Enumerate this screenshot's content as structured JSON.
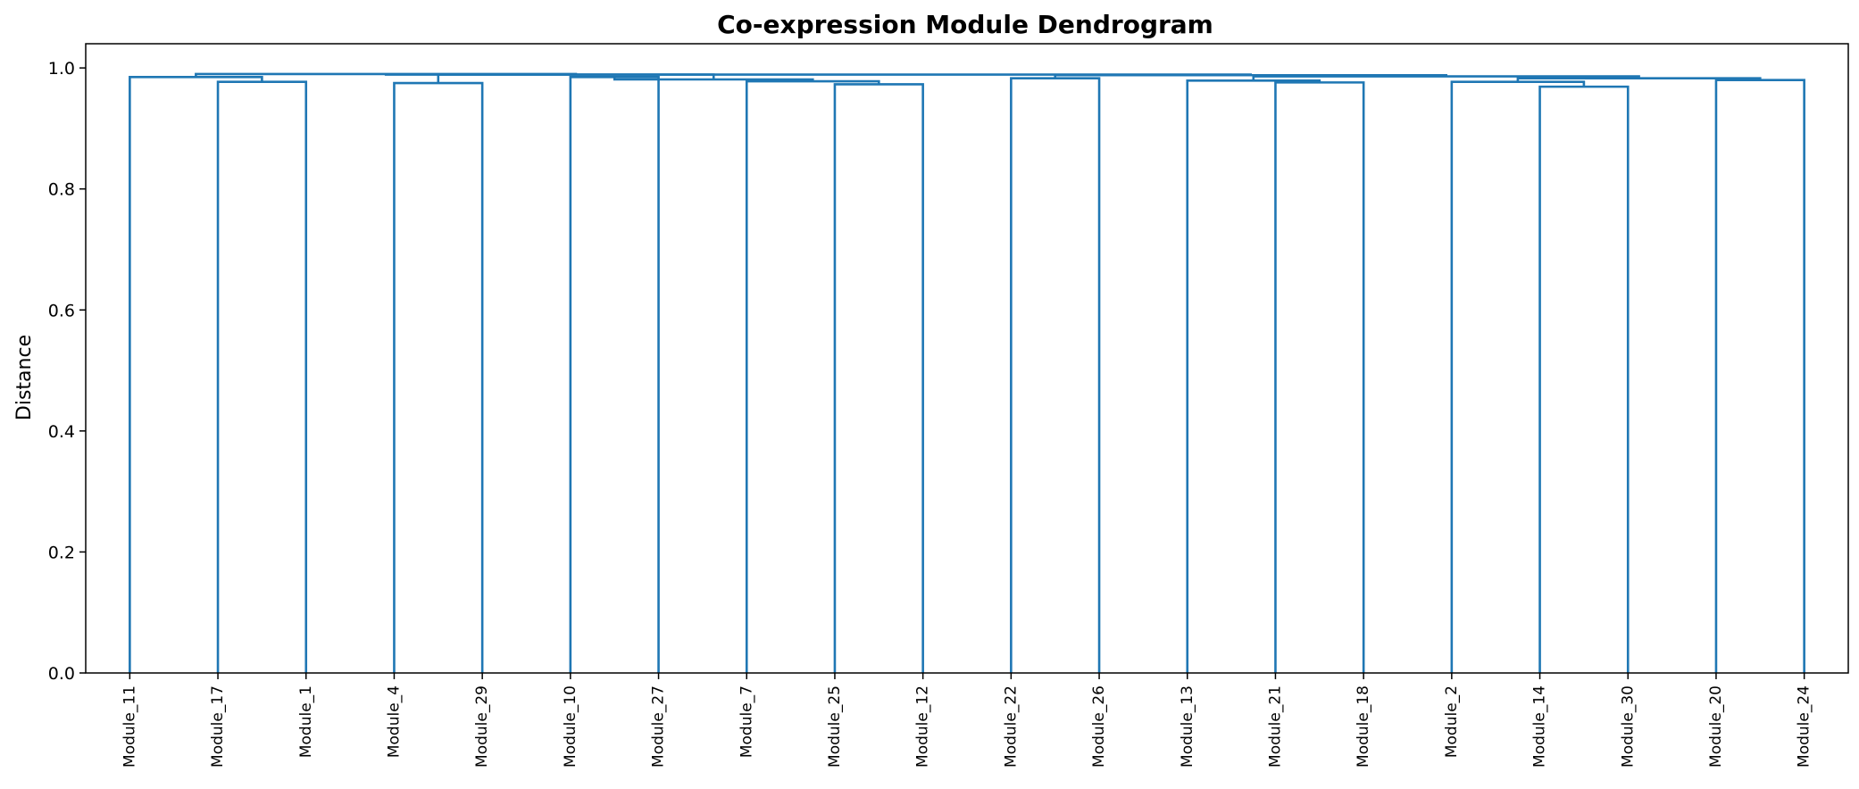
{
  "chart_data": {
    "type": "dendrogram",
    "title": "Co-expression Module Dendrogram",
    "xlabel": "",
    "ylabel": "Distance",
    "ylim": [
      0,
      1.04
    ],
    "yticks": [
      "0.0",
      "0.2",
      "0.4",
      "0.6",
      "0.8",
      "1.0"
    ],
    "grid": false,
    "line_color": "#1f77b4",
    "leaves": [
      "Module_11",
      "Module_17",
      "Module_1",
      "Module_4",
      "Module_29",
      "Module_10",
      "Module_27",
      "Module_7",
      "Module_25",
      "Module_12",
      "Module_22",
      "Module_26",
      "Module_13",
      "Module_21",
      "Module_18",
      "Module_2",
      "Module_14",
      "Module_30",
      "Module_20",
      "Module_24"
    ],
    "merges": [
      {
        "a": "Module_17",
        "b": "Module_1",
        "height": 0.977
      },
      {
        "a": "Module_11",
        "b": 0,
        "height": 0.985
      },
      {
        "a": "Module_4",
        "b": "Module_29",
        "height": 0.975
      },
      {
        "a": "Module_10",
        "b": "Module_27",
        "height": 0.985
      },
      {
        "a": "Module_25",
        "b": "Module_12",
        "height": 0.973
      },
      {
        "a": "Module_7",
        "b": 4,
        "height": 0.978
      },
      {
        "a": 3,
        "b": 5,
        "height": 0.981
      },
      {
        "a": 2,
        "b": 6,
        "height": 0.989
      },
      {
        "a": 1,
        "b": 7,
        "height": 0.99
      },
      {
        "a": "Module_22",
        "b": "Module_26",
        "height": 0.983
      },
      {
        "a": "Module_21",
        "b": "Module_18",
        "height": 0.976
      },
      {
        "a": "Module_13",
        "b": 10,
        "height": 0.979
      },
      {
        "a": "Module_14",
        "b": "Module_30",
        "height": 0.969
      },
      {
        "a": "Module_2",
        "b": 12,
        "height": 0.977
      },
      {
        "a": "Module_20",
        "b": "Module_24",
        "height": 0.98
      },
      {
        "a": 13,
        "b": 14,
        "height": 0.983
      },
      {
        "a": 11,
        "b": 15,
        "height": 0.986
      },
      {
        "a": 9,
        "b": 16,
        "height": 0.988
      },
      {
        "a": 8,
        "b": 17,
        "height": 0.989
      }
    ]
  }
}
